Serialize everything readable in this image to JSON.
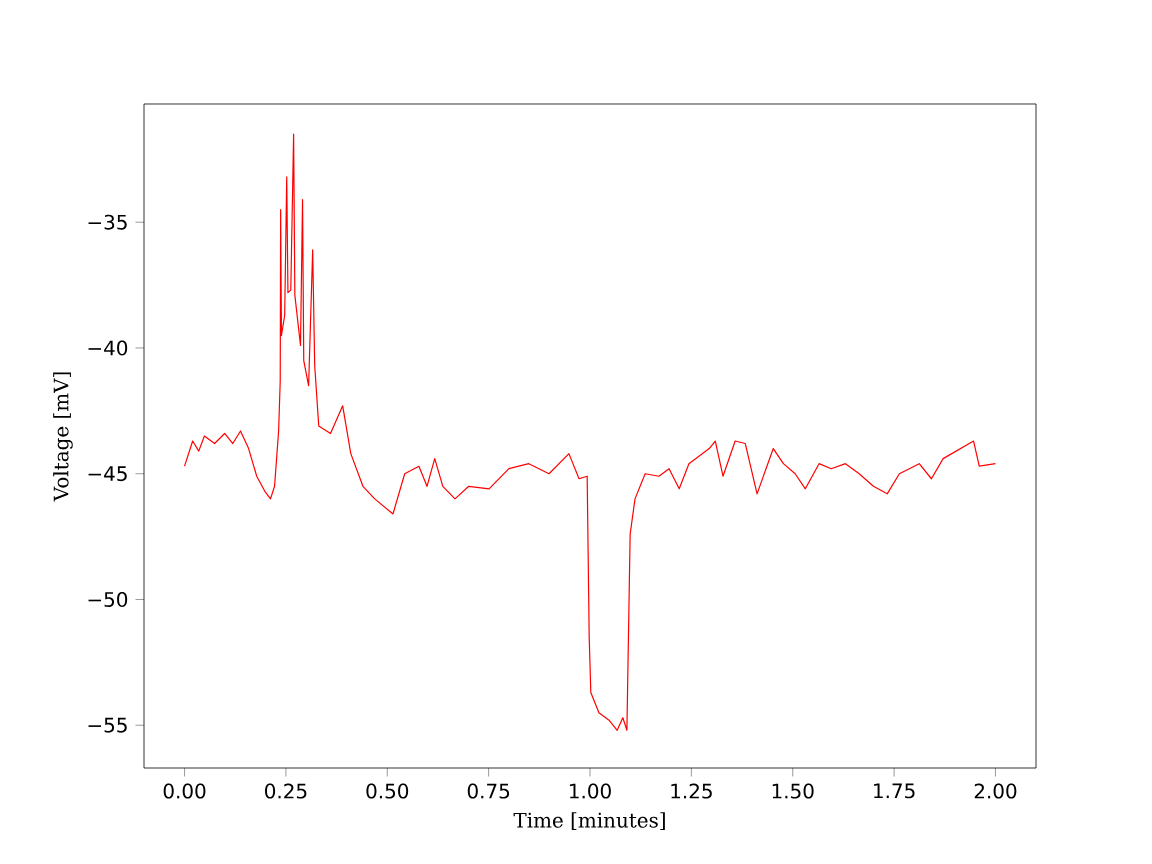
{
  "chart_data": {
    "type": "line",
    "xlabel": "Time [minutes]",
    "ylabel": "Voltage [mV]",
    "xlim": [
      -0.1,
      2.1
    ],
    "ylim": [
      -56.7,
      -30.3
    ],
    "xticks": [
      {
        "value": 0,
        "label": "0.00"
      },
      {
        "value": 0.25,
        "label": "0.25"
      },
      {
        "value": 0.5,
        "label": "0.50"
      },
      {
        "value": 0.75,
        "label": "0.75"
      },
      {
        "value": 1,
        "label": "1.00"
      },
      {
        "value": 1.25,
        "label": "1.25"
      },
      {
        "value": 1.5,
        "label": "1.50"
      },
      {
        "value": 1.75,
        "label": "1.75"
      },
      {
        "value": 2,
        "label": "2.00"
      }
    ],
    "yticks": [
      {
        "value": -55,
        "label": "−55"
      },
      {
        "value": -50,
        "label": "−50"
      },
      {
        "value": -45,
        "label": "−45"
      },
      {
        "value": -40,
        "label": "−40"
      },
      {
        "value": -35,
        "label": "−35"
      }
    ],
    "marker": "none",
    "line_style": "solid",
    "series": [
      {
        "color": "#ff0000",
        "x": [
          0,
          0.02,
          0.035,
          0.049,
          0.074,
          0.099,
          0.119,
          0.138,
          0.158,
          0.178,
          0.198,
          0.212,
          0.222,
          0.232,
          0.236,
          0.237,
          0.239,
          0.247,
          0.252,
          0.255,
          0.262,
          0.269,
          0.272,
          0.286,
          0.291,
          0.294,
          0.306,
          0.316,
          0.321,
          0.331,
          0.36,
          0.39,
          0.41,
          0.44,
          0.469,
          0.514,
          0.543,
          0.578,
          0.598,
          0.617,
          0.637,
          0.667,
          0.701,
          0.751,
          0.8,
          0.849,
          0.899,
          0.948,
          0.973,
          0.993,
          0.998,
          1.002,
          1.022,
          1.047,
          1.067,
          1.081,
          1.091,
          1.099,
          1.111,
          1.136,
          1.17,
          1.195,
          1.22,
          1.244,
          1.294,
          1.309,
          1.328,
          1.358,
          1.383,
          1.412,
          1.452,
          1.477,
          1.506,
          1.531,
          1.565,
          1.595,
          1.63,
          1.664,
          1.699,
          1.733,
          1.763,
          1.812,
          1.842,
          1.871,
          1.946,
          1.96,
          2.0
        ],
        "values": [
          -44.7,
          -43.7,
          -44.1,
          -43.5,
          -43.8,
          -43.4,
          -43.8,
          -43.3,
          -44.0,
          -45.1,
          -45.7,
          -46.0,
          -45.5,
          -43.3,
          -41.3,
          -34.5,
          -39.5,
          -38.7,
          -33.2,
          -37.8,
          -37.7,
          -31.5,
          -37.9,
          -39.9,
          -34.1,
          -40.5,
          -41.5,
          -36.1,
          -40.7,
          -43.1,
          -43.4,
          -42.3,
          -44.2,
          -45.5,
          -46.0,
          -46.6,
          -45.0,
          -44.7,
          -45.5,
          -44.4,
          -45.5,
          -46.0,
          -45.5,
          -45.6,
          -44.8,
          -44.6,
          -45.0,
          -44.2,
          -45.2,
          -45.1,
          -51.5,
          -53.7,
          -54.5,
          -54.8,
          -55.2,
          -54.7,
          -55.2,
          -47.4,
          -46.0,
          -45.0,
          -45.1,
          -44.8,
          -45.6,
          -44.6,
          -44.0,
          -43.7,
          -45.1,
          -43.7,
          -43.8,
          -45.8,
          -44.0,
          -44.6,
          -45.0,
          -45.6,
          -44.6,
          -44.8,
          -44.6,
          -45.0,
          -45.5,
          -45.8,
          -45.0,
          -44.6,
          -45.2,
          -44.4,
          -43.7,
          -44.7,
          -44.6
        ]
      }
    ]
  }
}
